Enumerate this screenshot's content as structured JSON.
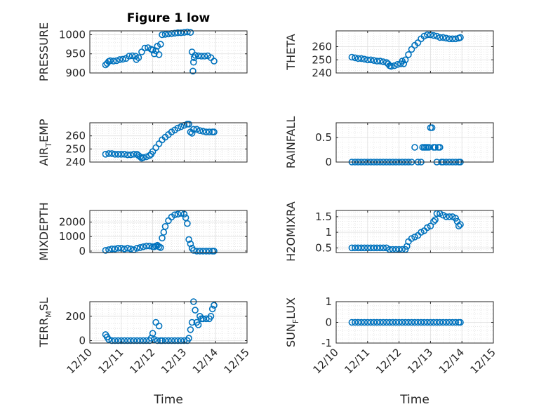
{
  "chart_data": [
    {
      "type": "scatter",
      "title": "Figure 1 low",
      "ylabel": "PRESSURE",
      "xlim": [
        0,
        5
      ],
      "ylim": [
        900,
        1010
      ],
      "yticks": [
        900,
        950,
        1000
      ],
      "xticklabels_shown": false,
      "grid": true,
      "marker_color": "#0072BD",
      "points": [
        [
          0.5,
          921
        ],
        [
          0.55,
          925
        ],
        [
          0.6,
          930
        ],
        [
          0.65,
          932
        ],
        [
          0.75,
          931
        ],
        [
          0.85,
          932
        ],
        [
          0.95,
          935
        ],
        [
          1.05,
          936
        ],
        [
          1.15,
          938
        ],
        [
          1.25,
          944
        ],
        [
          1.35,
          945
        ],
        [
          1.45,
          944
        ],
        [
          1.48,
          935
        ],
        [
          1.55,
          940
        ],
        [
          1.65,
          955
        ],
        [
          1.75,
          965
        ],
        [
          1.85,
          966
        ],
        [
          1.95,
          962
        ],
        [
          2.0,
          960
        ],
        [
          2.05,
          950
        ],
        [
          2.1,
          958
        ],
        [
          2.15,
          970
        ],
        [
          2.2,
          948
        ],
        [
          2.25,
          975
        ],
        [
          2.3,
          1000
        ],
        [
          2.4,
          1001
        ],
        [
          2.5,
          1002
        ],
        [
          2.6,
          1003
        ],
        [
          2.7,
          1004
        ],
        [
          2.8,
          1005
        ],
        [
          2.9,
          1005
        ],
        [
          3.0,
          1006
        ],
        [
          3.1,
          1007
        ],
        [
          3.2,
          1006
        ],
        [
          3.25,
          955
        ],
        [
          3.28,
          905
        ],
        [
          3.3,
          928
        ],
        [
          3.32,
          940
        ],
        [
          3.35,
          946
        ],
        [
          3.45,
          945
        ],
        [
          3.55,
          944
        ],
        [
          3.65,
          944
        ],
        [
          3.75,
          945
        ],
        [
          3.85,
          940
        ],
        [
          3.95,
          931
        ]
      ]
    },
    {
      "type": "scatter",
      "ylabel": "THETA",
      "xlim": [
        0,
        5
      ],
      "ylim": [
        240,
        272
      ],
      "yticks": [
        240,
        250,
        260
      ],
      "xticklabels_shown": false,
      "grid": true,
      "marker_color": "#0072BD",
      "points": [
        [
          0.5,
          252
        ],
        [
          0.6,
          251.5
        ],
        [
          0.7,
          251
        ],
        [
          0.8,
          251
        ],
        [
          0.9,
          250.5
        ],
        [
          1.0,
          250
        ],
        [
          1.1,
          250
        ],
        [
          1.2,
          249.5
        ],
        [
          1.3,
          249
        ],
        [
          1.4,
          249
        ],
        [
          1.5,
          248.5
        ],
        [
          1.6,
          248
        ],
        [
          1.65,
          247
        ],
        [
          1.7,
          245.5
        ],
        [
          1.75,
          245
        ],
        [
          1.85,
          245.5
        ],
        [
          1.95,
          246.5
        ],
        [
          2.05,
          247
        ],
        [
          2.1,
          249
        ],
        [
          2.15,
          247
        ],
        [
          2.2,
          250
        ],
        [
          2.3,
          254
        ],
        [
          2.4,
          258
        ],
        [
          2.5,
          261
        ],
        [
          2.6,
          263
        ],
        [
          2.7,
          266
        ],
        [
          2.8,
          268
        ],
        [
          2.9,
          269
        ],
        [
          3.0,
          269
        ],
        [
          3.1,
          268.5
        ],
        [
          3.2,
          268
        ],
        [
          3.3,
          267
        ],
        [
          3.4,
          267
        ],
        [
          3.5,
          266.5
        ],
        [
          3.6,
          266
        ],
        [
          3.7,
          266
        ],
        [
          3.8,
          266
        ],
        [
          3.9,
          266.5
        ],
        [
          3.95,
          267
        ]
      ]
    },
    {
      "type": "scatter",
      "ylabel": "AIR_TEMP",
      "xlim": [
        0,
        5
      ],
      "ylim": [
        240,
        270
      ],
      "yticks": [
        240,
        250,
        260
      ],
      "xticklabels_shown": false,
      "grid": true,
      "marker_color": "#0072BD",
      "points": [
        [
          0.5,
          246
        ],
        [
          0.6,
          246.5
        ],
        [
          0.7,
          246.5
        ],
        [
          0.8,
          246
        ],
        [
          0.9,
          246
        ],
        [
          1.0,
          246
        ],
        [
          1.1,
          246
        ],
        [
          1.2,
          245.5
        ],
        [
          1.3,
          245.5
        ],
        [
          1.4,
          246
        ],
        [
          1.5,
          246
        ],
        [
          1.55,
          245
        ],
        [
          1.6,
          244
        ],
        [
          1.65,
          243
        ],
        [
          1.7,
          243.5
        ],
        [
          1.8,
          244
        ],
        [
          1.9,
          245
        ],
        [
          1.95,
          246
        ],
        [
          2.0,
          248
        ],
        [
          2.1,
          251
        ],
        [
          2.2,
          254
        ],
        [
          2.3,
          257
        ],
        [
          2.4,
          259
        ],
        [
          2.5,
          261
        ],
        [
          2.6,
          263
        ],
        [
          2.7,
          264.5
        ],
        [
          2.8,
          266
        ],
        [
          2.9,
          267
        ],
        [
          3.0,
          268
        ],
        [
          3.1,
          269
        ],
        [
          3.15,
          269
        ],
        [
          3.2,
          263
        ],
        [
          3.25,
          262
        ],
        [
          3.3,
          265
        ],
        [
          3.4,
          265
        ],
        [
          3.5,
          264
        ],
        [
          3.6,
          263.5
        ],
        [
          3.7,
          263
        ],
        [
          3.8,
          263
        ],
        [
          3.9,
          263
        ],
        [
          3.95,
          263
        ]
      ]
    },
    {
      "type": "scatter",
      "ylabel": "RAINFALL",
      "xlim": [
        0,
        5
      ],
      "ylim": [
        0,
        0.8
      ],
      "yticks": [
        0,
        0.5
      ],
      "xticklabels_shown": false,
      "grid": true,
      "marker_color": "#0072BD",
      "points": [
        [
          0.5,
          0
        ],
        [
          0.6,
          0
        ],
        [
          0.7,
          0
        ],
        [
          0.8,
          0
        ],
        [
          0.9,
          0
        ],
        [
          1.0,
          0
        ],
        [
          1.1,
          0
        ],
        [
          1.2,
          0
        ],
        [
          1.3,
          0
        ],
        [
          1.4,
          0
        ],
        [
          1.5,
          0
        ],
        [
          1.6,
          0
        ],
        [
          1.7,
          0
        ],
        [
          1.8,
          0
        ],
        [
          1.9,
          0
        ],
        [
          2.0,
          0
        ],
        [
          2.1,
          0
        ],
        [
          2.2,
          0
        ],
        [
          2.3,
          0
        ],
        [
          2.4,
          0
        ],
        [
          2.5,
          0.3
        ],
        [
          2.6,
          0
        ],
        [
          2.7,
          0
        ],
        [
          2.75,
          0.3
        ],
        [
          2.8,
          0.3
        ],
        [
          2.85,
          0.3
        ],
        [
          2.9,
          0.3
        ],
        [
          2.95,
          0.3
        ],
        [
          3.0,
          0.7
        ],
        [
          3.05,
          0.7
        ],
        [
          3.1,
          0.3
        ],
        [
          3.15,
          0.3
        ],
        [
          3.2,
          0
        ],
        [
          3.25,
          0.3
        ],
        [
          3.3,
          0.3
        ],
        [
          3.35,
          0
        ],
        [
          3.4,
          0
        ],
        [
          3.5,
          0
        ],
        [
          3.6,
          0
        ],
        [
          3.7,
          0
        ],
        [
          3.8,
          0
        ],
        [
          3.9,
          0
        ],
        [
          3.95,
          0
        ]
      ]
    },
    {
      "type": "scatter",
      "ylabel": "MIXDEPTH",
      "xlim": [
        0,
        5
      ],
      "ylim": [
        -100,
        2800
      ],
      "yticks": [
        0,
        1000,
        2000
      ],
      "xticklabels_shown": false,
      "grid": true,
      "marker_color": "#0072BD",
      "points": [
        [
          0.5,
          50
        ],
        [
          0.6,
          100
        ],
        [
          0.7,
          150
        ],
        [
          0.8,
          150
        ],
        [
          0.9,
          200
        ],
        [
          1.0,
          200
        ],
        [
          1.1,
          150
        ],
        [
          1.2,
          200
        ],
        [
          1.3,
          150
        ],
        [
          1.4,
          100
        ],
        [
          1.5,
          200
        ],
        [
          1.6,
          250
        ],
        [
          1.7,
          300
        ],
        [
          1.8,
          350
        ],
        [
          1.9,
          350
        ],
        [
          2.0,
          300
        ],
        [
          2.05,
          300
        ],
        [
          2.1,
          350
        ],
        [
          2.15,
          400
        ],
        [
          2.2,
          300
        ],
        [
          2.25,
          250
        ],
        [
          2.3,
          900
        ],
        [
          2.35,
          1300
        ],
        [
          2.4,
          1700
        ],
        [
          2.5,
          2100
        ],
        [
          2.6,
          2350
        ],
        [
          2.7,
          2500
        ],
        [
          2.8,
          2550
        ],
        [
          2.9,
          2600
        ],
        [
          3.0,
          2550
        ],
        [
          3.05,
          2300
        ],
        [
          3.1,
          1900
        ],
        [
          3.15,
          800
        ],
        [
          3.2,
          500
        ],
        [
          3.25,
          200
        ],
        [
          3.3,
          50
        ],
        [
          3.4,
          0
        ],
        [
          3.5,
          0
        ],
        [
          3.6,
          0
        ],
        [
          3.7,
          0
        ],
        [
          3.8,
          0
        ],
        [
          3.9,
          0
        ],
        [
          3.95,
          0
        ]
      ]
    },
    {
      "type": "scatter",
      "ylabel": "H2OMIXRA",
      "xlim": [
        0,
        5
      ],
      "ylim": [
        0.35,
        1.7
      ],
      "yticks": [
        0.5,
        1,
        1.5
      ],
      "xticklabels_shown": false,
      "grid": true,
      "marker_color": "#0072BD",
      "points": [
        [
          0.5,
          0.5
        ],
        [
          0.6,
          0.5
        ],
        [
          0.7,
          0.5
        ],
        [
          0.8,
          0.5
        ],
        [
          0.9,
          0.5
        ],
        [
          1.0,
          0.5
        ],
        [
          1.1,
          0.5
        ],
        [
          1.2,
          0.5
        ],
        [
          1.3,
          0.5
        ],
        [
          1.4,
          0.5
        ],
        [
          1.5,
          0.5
        ],
        [
          1.6,
          0.5
        ],
        [
          1.7,
          0.45
        ],
        [
          1.8,
          0.45
        ],
        [
          1.9,
          0.45
        ],
        [
          2.0,
          0.45
        ],
        [
          2.1,
          0.45
        ],
        [
          2.2,
          0.45
        ],
        [
          2.25,
          0.55
        ],
        [
          2.3,
          0.7
        ],
        [
          2.4,
          0.8
        ],
        [
          2.5,
          0.85
        ],
        [
          2.6,
          0.9
        ],
        [
          2.7,
          1.0
        ],
        [
          2.8,
          1.05
        ],
        [
          2.9,
          1.15
        ],
        [
          3.0,
          1.2
        ],
        [
          3.1,
          1.35
        ],
        [
          3.15,
          1.4
        ],
        [
          3.2,
          1.6
        ],
        [
          3.3,
          1.6
        ],
        [
          3.4,
          1.55
        ],
        [
          3.5,
          1.5
        ],
        [
          3.6,
          1.5
        ],
        [
          3.7,
          1.5
        ],
        [
          3.8,
          1.45
        ],
        [
          3.85,
          1.35
        ],
        [
          3.9,
          1.2
        ],
        [
          3.95,
          1.25
        ]
      ]
    },
    {
      "type": "scatter",
      "ylabel": "TERR_MSL",
      "xlim": [
        0,
        5
      ],
      "xticks": [
        0,
        1,
        2,
        3,
        4,
        5
      ],
      "xticklabels": [
        "12/10",
        "12/11",
        "12/12",
        "12/13",
        "12/14",
        "12/15"
      ],
      "xlabel": "Time",
      "ylim": [
        -20,
        320
      ],
      "yticks": [
        0,
        200
      ],
      "grid": true,
      "marker_color": "#0072BD",
      "points": [
        [
          0.5,
          50
        ],
        [
          0.55,
          30
        ],
        [
          0.6,
          10
        ],
        [
          0.7,
          0
        ],
        [
          0.8,
          0
        ],
        [
          0.9,
          0
        ],
        [
          1.0,
          0
        ],
        [
          1.1,
          0
        ],
        [
          1.2,
          0
        ],
        [
          1.3,
          0
        ],
        [
          1.4,
          0
        ],
        [
          1.5,
          0
        ],
        [
          1.6,
          0
        ],
        [
          1.7,
          0
        ],
        [
          1.8,
          0
        ],
        [
          1.9,
          0
        ],
        [
          1.95,
          20
        ],
        [
          2.0,
          60
        ],
        [
          2.05,
          10
        ],
        [
          2.1,
          150
        ],
        [
          2.15,
          0
        ],
        [
          2.2,
          120
        ],
        [
          2.25,
          0
        ],
        [
          2.3,
          0
        ],
        [
          2.4,
          0
        ],
        [
          2.5,
          0
        ],
        [
          2.6,
          0
        ],
        [
          2.7,
          0
        ],
        [
          2.8,
          0
        ],
        [
          2.9,
          0
        ],
        [
          3.0,
          0
        ],
        [
          3.1,
          0
        ],
        [
          3.15,
          20
        ],
        [
          3.2,
          90
        ],
        [
          3.25,
          150
        ],
        [
          3.3,
          320
        ],
        [
          3.35,
          250
        ],
        [
          3.4,
          150
        ],
        [
          3.45,
          130
        ],
        [
          3.5,
          200
        ],
        [
          3.55,
          180
        ],
        [
          3.6,
          180
        ],
        [
          3.7,
          180
        ],
        [
          3.8,
          180
        ],
        [
          3.85,
          200
        ],
        [
          3.9,
          260
        ],
        [
          3.95,
          290
        ]
      ]
    },
    {
      "type": "scatter",
      "ylabel": "SUN_FLUX",
      "xlim": [
        0,
        5
      ],
      "xticks": [
        0,
        1,
        2,
        3,
        4,
        5
      ],
      "xticklabels": [
        "12/10",
        "12/11",
        "12/12",
        "12/13",
        "12/14",
        "12/15"
      ],
      "xlabel": "Time",
      "ylim": [
        -1,
        1
      ],
      "yticks": [
        -1,
        0,
        1
      ],
      "grid": true,
      "marker_color": "#0072BD",
      "points": [
        [
          0.5,
          0
        ],
        [
          0.6,
          0
        ],
        [
          0.7,
          0
        ],
        [
          0.8,
          0
        ],
        [
          0.9,
          0
        ],
        [
          1.0,
          0
        ],
        [
          1.1,
          0
        ],
        [
          1.2,
          0
        ],
        [
          1.3,
          0
        ],
        [
          1.4,
          0
        ],
        [
          1.5,
          0
        ],
        [
          1.6,
          0
        ],
        [
          1.7,
          0
        ],
        [
          1.8,
          0
        ],
        [
          1.9,
          0
        ],
        [
          2.0,
          0
        ],
        [
          2.1,
          0
        ],
        [
          2.2,
          0
        ],
        [
          2.3,
          0
        ],
        [
          2.4,
          0
        ],
        [
          2.5,
          0
        ],
        [
          2.6,
          0
        ],
        [
          2.7,
          0
        ],
        [
          2.8,
          0
        ],
        [
          2.9,
          0
        ],
        [
          3.0,
          0
        ],
        [
          3.1,
          0
        ],
        [
          3.2,
          0
        ],
        [
          3.3,
          0
        ],
        [
          3.4,
          0
        ],
        [
          3.5,
          0
        ],
        [
          3.6,
          0
        ],
        [
          3.7,
          0
        ],
        [
          3.8,
          0
        ],
        [
          3.9,
          0
        ],
        [
          3.95,
          0
        ]
      ]
    }
  ]
}
